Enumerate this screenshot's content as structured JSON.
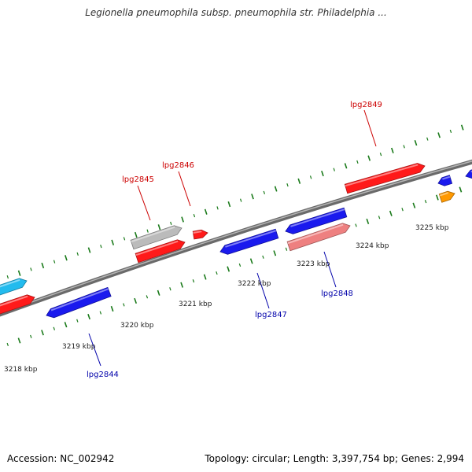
{
  "header": {
    "title": "Legionella pneumophila subsp. pneumophila str. Philadelphia ..."
  },
  "footer": {
    "accession": "Accession: NC_002942",
    "summary": "Topology: circular; Length: 3,397,754 bp; Genes: 2,994"
  },
  "colors": {
    "backbone": "#808080",
    "ticks": "#1a7a1a",
    "forward_label": "#cc0000",
    "reverse_label": "#0000aa",
    "red": "#ff1a1a",
    "blue": "#1a1aee",
    "grey": "#bbbbbb",
    "pink": "#ee8080",
    "cyan": "#22bbee",
    "orange": "#ff9900"
  },
  "scale_labels": [
    "3218 kbp",
    "3219 kbp",
    "3220 kbp",
    "3221 kbp",
    "3222 kbp",
    "3223 kbp",
    "3224 kbp",
    "3225 kbp"
  ],
  "gene_labels": [
    {
      "text": "lpg2844",
      "strand": "reverse"
    },
    {
      "text": "lpg2845",
      "strand": "forward"
    },
    {
      "text": "lpg2846",
      "strand": "forward"
    },
    {
      "text": "lpg2847",
      "strand": "reverse"
    },
    {
      "text": "lpg2848",
      "strand": "reverse"
    },
    {
      "text": "lpg2849",
      "strand": "forward"
    }
  ]
}
